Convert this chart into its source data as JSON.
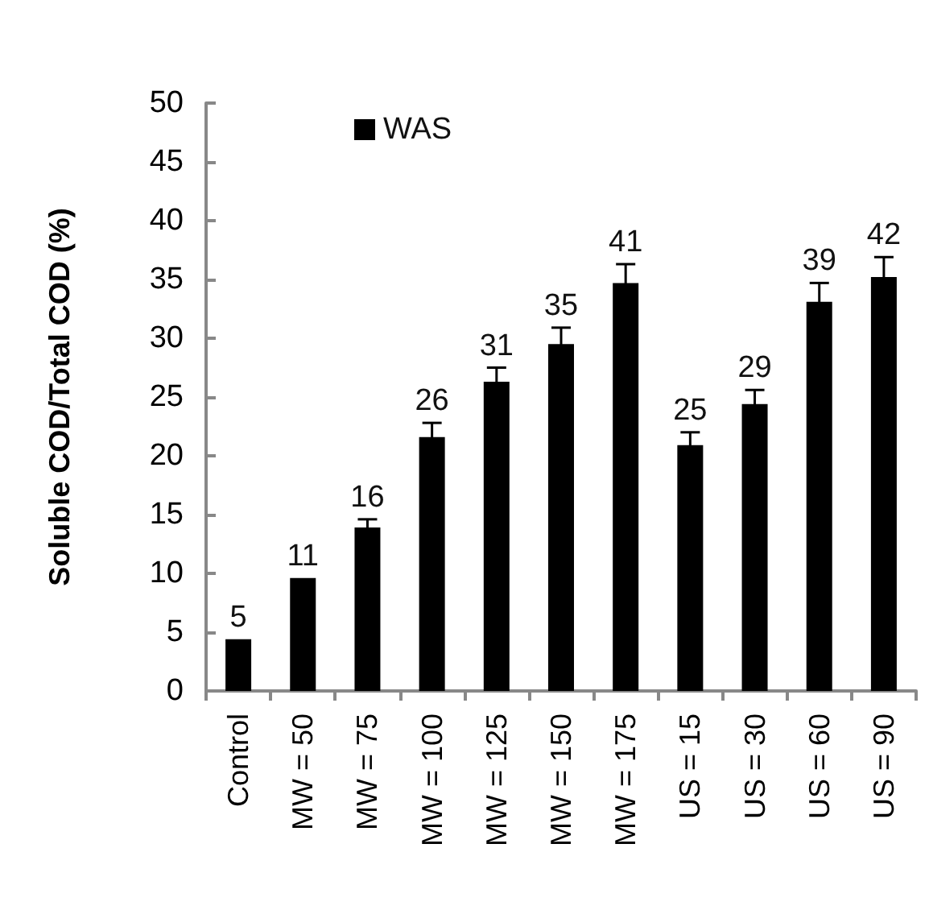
{
  "chart_data": {
    "type": "bar",
    "ylabel": "Soluble COD/Total COD (%)",
    "categories": [
      "Control",
      "MW = 50",
      "MW = 75",
      "MW = 100",
      "MW = 125",
      "MW = 150",
      "MW = 175",
      "US = 15",
      "US = 30",
      "US = 60",
      "US = 90"
    ],
    "series": [
      {
        "name": "WAS",
        "color": "#000000",
        "values": [
          4.4,
          9.6,
          13.9,
          21.6,
          26.3,
          29.5,
          34.7,
          20.9,
          24.4,
          33.1,
          35.2
        ],
        "errors": [
          null,
          null,
          0.7,
          1.2,
          1.2,
          1.4,
          1.6,
          1.1,
          1.2,
          1.6,
          1.7
        ]
      }
    ],
    "annotations": [
      {
        "text": "5",
        "x": "Control",
        "y": 4.4
      },
      {
        "text": "11",
        "x": "MW = 50",
        "y": 9.6
      },
      {
        "text": "16",
        "x": "MW = 75",
        "y": 14.6
      },
      {
        "text": "26",
        "x": "MW = 100",
        "y": 22.8
      },
      {
        "text": "31",
        "x": "MW = 125",
        "y": 27.5
      },
      {
        "text": "35",
        "x": "MW = 150",
        "y": 30.9
      },
      {
        "text": "41",
        "x": "MW = 175",
        "y": 36.3
      },
      {
        "text": "25",
        "x": "US = 15",
        "y": 22
      },
      {
        "text": "29",
        "x": "US = 30",
        "y": 25.6
      },
      {
        "text": "39",
        "x": "US = 60",
        "y": 34.7
      },
      {
        "text": "42",
        "x": "US = 90",
        "y": 36.9
      }
    ],
    "ylim": [
      0,
      50
    ],
    "yticks": [
      0,
      5,
      10,
      15,
      20,
      25,
      30,
      35,
      40,
      45,
      50
    ],
    "grid": false,
    "legend": "top left"
  }
}
